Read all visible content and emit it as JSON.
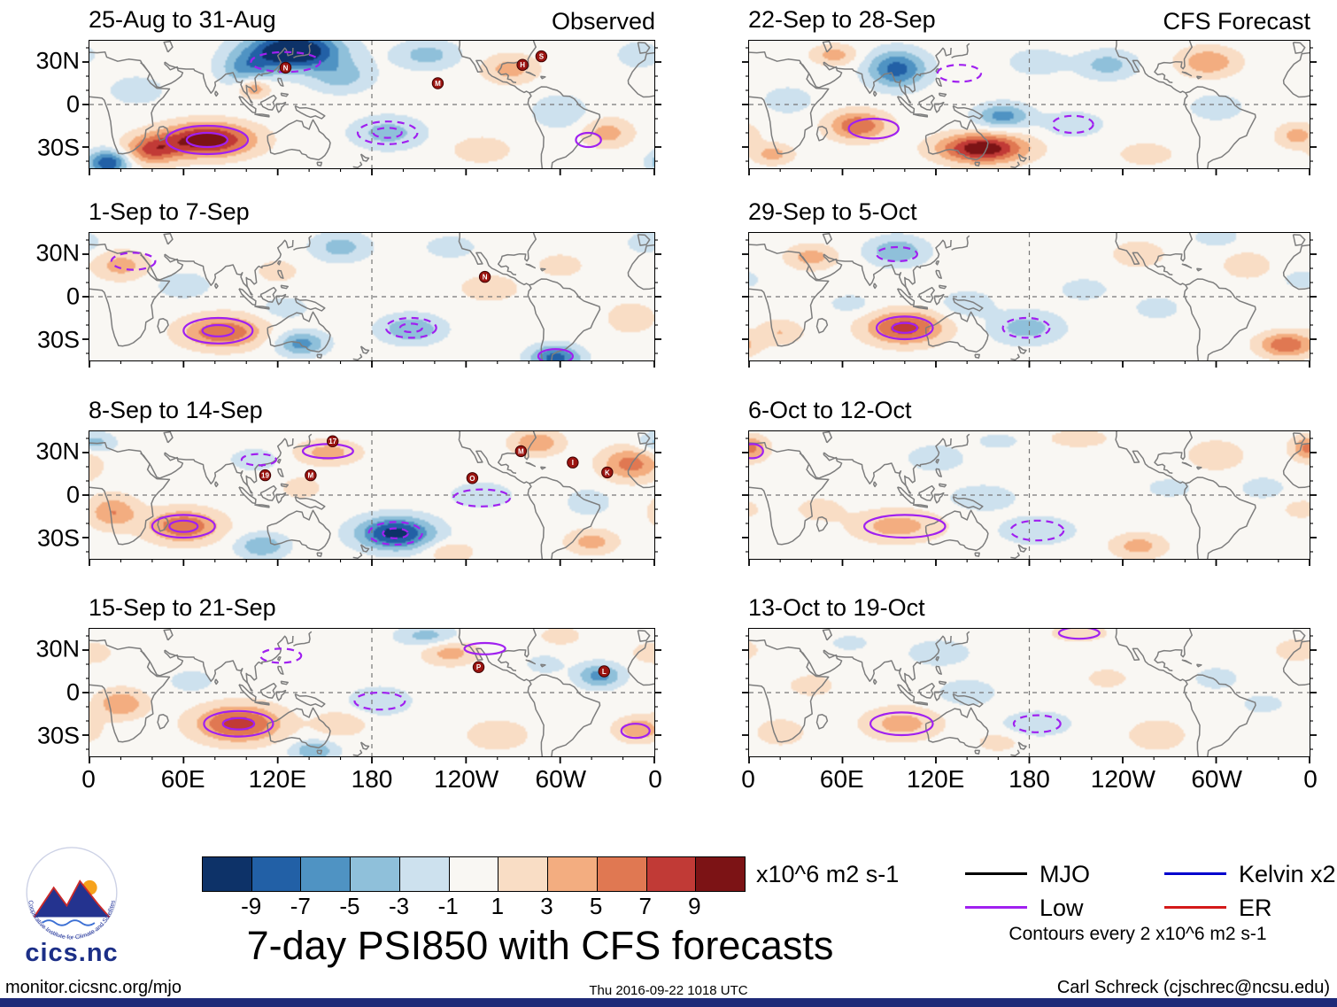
{
  "chart_data": {
    "type": "heatmap",
    "title": "7-day PSI850 with CFS forecasts",
    "columns": [
      "Observed",
      "CFS Forecast"
    ],
    "axes": {
      "lat_ticks": [
        "30N",
        "0",
        "30S"
      ],
      "lon_ticks": [
        "0",
        "60E",
        "120E",
        "180",
        "120W",
        "60W",
        "0"
      ],
      "lat_range": [
        -45,
        45
      ],
      "lon_range": [
        0,
        360
      ]
    },
    "colorbar": {
      "levels": [
        -9,
        -7,
        -5,
        -3,
        -1,
        1,
        3,
        5,
        7,
        9
      ],
      "colors": [
        "#0d3268",
        "#2260a6",
        "#4f93c3",
        "#8fc0da",
        "#cde1ee",
        "#f9f7f3",
        "#f9ddc5",
        "#f3ad80",
        "#e07852",
        "#c13a36",
        "#7c1315"
      ],
      "tick_labels": [
        "-9",
        "-7",
        "-5",
        "-3",
        "-1",
        "1",
        "3",
        "5",
        "7",
        "9"
      ],
      "units": "x10^6 m2 s-1"
    },
    "contour_note": "Contours every 2 x10^6 m2 s-1",
    "legend": [
      {
        "label": "MJO",
        "color": "#000000"
      },
      {
        "label": "Low",
        "color": "#a020f0"
      },
      {
        "label": "Kelvin x2",
        "color": "#0000cd"
      },
      {
        "label": "ER",
        "color": "#d41a1a"
      }
    ],
    "panels": [
      {
        "title": "25-Aug to 31-Aug",
        "column": "Observed",
        "centers": [
          [
            130,
            38,
            -13,
            20,
            9
          ],
          [
            100,
            25,
            -5,
            12,
            8
          ],
          [
            160,
            20,
            -4,
            14,
            8
          ],
          [
            105,
            12,
            5,
            7,
            5
          ],
          [
            75,
            -25,
            11,
            20,
            8
          ],
          [
            40,
            -32,
            7,
            12,
            7
          ],
          [
            12,
            -41,
            -9,
            9,
            6
          ],
          [
            190,
            -20,
            -4,
            16,
            8
          ],
          [
            215,
            35,
            -4,
            14,
            7
          ],
          [
            268,
            25,
            4,
            12,
            7
          ],
          [
            300,
            -5,
            -3,
            12,
            8
          ],
          [
            330,
            -20,
            4,
            11,
            7
          ],
          [
            250,
            -32,
            3,
            12,
            6
          ],
          [
            30,
            10,
            -2,
            14,
            8
          ],
          [
            350,
            35,
            -3,
            9,
            6
          ]
        ],
        "contours": [
          [
            75,
            -25,
            26,
            10,
            0
          ],
          [
            75,
            -25,
            13,
            5,
            0
          ],
          [
            190,
            -20,
            19,
            8,
            1
          ],
          [
            190,
            -20,
            9,
            3.5,
            1
          ],
          [
            125,
            30,
            22,
            7,
            1
          ],
          [
            318,
            -25,
            8,
            5,
            0
          ]
        ],
        "storms": [
          [
            "N",
            125,
            26
          ],
          [
            "M",
            222,
            15
          ],
          [
            "H",
            276,
            28
          ],
          [
            "S",
            288,
            34
          ]
        ]
      },
      {
        "title": "1-Sep to 7-Sep",
        "column": "Observed",
        "centers": [
          [
            20,
            22,
            4,
            12,
            7
          ],
          [
            60,
            8,
            -3,
            11,
            6
          ],
          [
            85,
            -25,
            7,
            18,
            8
          ],
          [
            135,
            -33,
            -6,
            11,
            6
          ],
          [
            125,
            -8,
            -3,
            9,
            5
          ],
          [
            160,
            35,
            -4,
            13,
            7
          ],
          [
            205,
            -23,
            -5,
            14,
            7
          ],
          [
            297,
            -43,
            -8,
            11,
            6
          ],
          [
            255,
            6,
            3,
            12,
            6
          ],
          [
            300,
            22,
            3,
            9,
            5
          ],
          [
            345,
            -15,
            3,
            10,
            7
          ],
          [
            230,
            35,
            -3,
            10,
            5
          ],
          [
            120,
            18,
            2,
            10,
            6
          ],
          [
            355,
            38,
            -3,
            8,
            5
          ]
        ],
        "contours": [
          [
            82,
            -24,
            22,
            9,
            0
          ],
          [
            82,
            -24,
            10,
            4,
            0
          ],
          [
            205,
            -22,
            16,
            7,
            1
          ],
          [
            205,
            -22,
            7,
            3,
            1
          ],
          [
            28,
            25,
            14,
            6,
            1
          ],
          [
            297,
            -42,
            11,
            5,
            0
          ]
        ],
        "storms": [
          [
            "N",
            252,
            14
          ]
        ]
      },
      {
        "title": "8-Sep to 14-Sep",
        "column": "Observed",
        "centers": [
          [
            15,
            -12,
            5,
            11,
            8
          ],
          [
            60,
            -22,
            7,
            16,
            8
          ],
          [
            110,
            -36,
            -5,
            11,
            6
          ],
          [
            195,
            -27,
            -10,
            17,
            8
          ],
          [
            152,
            30,
            4,
            14,
            6
          ],
          [
            250,
            0,
            -3,
            13,
            6
          ],
          [
            285,
            37,
            5,
            11,
            6
          ],
          [
            345,
            22,
            6,
            13,
            8
          ],
          [
            318,
            -5,
            -3,
            9,
            6
          ],
          [
            320,
            -33,
            4,
            11,
            6
          ],
          [
            3,
            37,
            -4,
            9,
            5
          ],
          [
            105,
            25,
            -3,
            10,
            5
          ],
          [
            230,
            -40,
            3,
            10,
            5
          ],
          [
            135,
            5,
            2,
            10,
            6
          ]
        ],
        "contours": [
          [
            60,
            -22,
            20,
            8,
            0
          ],
          [
            60,
            -22,
            9,
            4,
            0
          ],
          [
            195,
            -27,
            17,
            8,
            1
          ],
          [
            195,
            -27,
            8,
            3.5,
            1
          ],
          [
            152,
            31,
            16,
            5,
            0
          ],
          [
            108,
            25,
            11,
            4,
            1
          ],
          [
            250,
            -2,
            18,
            6,
            1
          ]
        ],
        "storms": [
          [
            "17",
            155,
            38
          ],
          [
            "19",
            112,
            14
          ],
          [
            "M",
            141,
            14
          ],
          [
            "O",
            244,
            12
          ],
          [
            "M",
            275,
            31
          ],
          [
            "I",
            308,
            23
          ],
          [
            "K",
            330,
            16
          ]
        ]
      },
      {
        "title": "15-Sep to 21-Sep",
        "column": "Observed",
        "centers": [
          [
            95,
            -22,
            8,
            19,
            9
          ],
          [
            20,
            -8,
            5,
            11,
            7
          ],
          [
            143,
            -41,
            -5,
            10,
            5
          ],
          [
            185,
            -6,
            -3,
            14,
            7
          ],
          [
            230,
            28,
            4,
            12,
            6
          ],
          [
            325,
            12,
            -6,
            10,
            6
          ],
          [
            260,
            -30,
            3,
            13,
            7
          ],
          [
            350,
            -26,
            5,
            10,
            6
          ],
          [
            215,
            40,
            -4,
            13,
            5
          ],
          [
            300,
            40,
            3,
            8,
            4
          ],
          [
            0,
            28,
            3,
            9,
            5
          ],
          [
            65,
            8,
            -2,
            11,
            6
          ],
          [
            160,
            -22,
            3,
            11,
            6
          ],
          [
            290,
            20,
            -2,
            9,
            5
          ]
        ],
        "contours": [
          [
            95,
            -22,
            22,
            9,
            0
          ],
          [
            95,
            -22,
            10,
            4,
            0
          ],
          [
            185,
            -6,
            16,
            6,
            1
          ],
          [
            122,
            26,
            13,
            5,
            1
          ],
          [
            348,
            -27,
            9,
            5,
            0
          ],
          [
            252,
            31,
            13,
            4,
            0
          ]
        ],
        "storms": [
          [
            "P",
            248,
            18
          ],
          [
            "L",
            328,
            15
          ]
        ]
      },
      {
        "title": "22-Sep to 28-Sep",
        "column": "CFS Forecast",
        "centers": [
          [
            95,
            25,
            -8,
            13,
            9
          ],
          [
            70,
            -15,
            7,
            13,
            7
          ],
          [
            150,
            -31,
            11,
            19,
            7
          ],
          [
            163,
            -8,
            -6,
            12,
            6
          ],
          [
            208,
            -14,
            -3,
            13,
            6
          ],
          [
            230,
            28,
            -4,
            13,
            7
          ],
          [
            295,
            30,
            5,
            13,
            7
          ],
          [
            300,
            -2,
            -3,
            11,
            6
          ],
          [
            352,
            -22,
            4,
            9,
            6
          ],
          [
            25,
            3,
            -3,
            10,
            6
          ],
          [
            15,
            -35,
            4,
            9,
            5
          ],
          [
            55,
            35,
            4,
            10,
            5
          ],
          [
            185,
            30,
            -3,
            12,
            6
          ],
          [
            255,
            -35,
            3,
            11,
            5
          ]
        ],
        "contours": [
          [
            80,
            -17,
            16,
            7,
            0
          ],
          [
            135,
            22,
            14,
            6,
            1
          ],
          [
            208,
            -14,
            13,
            6,
            1
          ]
        ],
        "storms": []
      },
      {
        "title": "29-Sep to 5-Oct",
        "column": "CFS Forecast",
        "centers": [
          [
            100,
            -22,
            8,
            17,
            8
          ],
          [
            95,
            32,
            -5,
            13,
            7
          ],
          [
            40,
            28,
            4,
            11,
            6
          ],
          [
            140,
            -5,
            -3,
            11,
            6
          ],
          [
            178,
            -22,
            -4,
            16,
            8
          ],
          [
            250,
            30,
            3,
            11,
            6
          ],
          [
            262,
            -8,
            -2,
            11,
            6
          ],
          [
            345,
            -34,
            7,
            12,
            6
          ],
          [
            320,
            22,
            3,
            10,
            6
          ],
          [
            355,
            12,
            -2,
            9,
            5
          ],
          [
            20,
            -25,
            3,
            10,
            6
          ],
          [
            215,
            5,
            -2,
            12,
            6
          ],
          [
            300,
            42,
            -3,
            9,
            4
          ],
          [
            65,
            -5,
            -2,
            10,
            5
          ]
        ],
        "contours": [
          [
            100,
            -22,
            18,
            8,
            0
          ],
          [
            100,
            -22,
            8,
            3.5,
            0
          ],
          [
            178,
            -22,
            15,
            7,
            1
          ],
          [
            95,
            30,
            13,
            5,
            1
          ]
        ],
        "storms": []
      },
      {
        "title": "6-Oct to 12-Oct",
        "column": "CFS Forecast",
        "centers": [
          [
            0,
            33,
            6,
            8,
            6
          ],
          [
            95,
            -22,
            4,
            20,
            8
          ],
          [
            185,
            -25,
            -3,
            17,
            7
          ],
          [
            150,
            -2,
            -3,
            14,
            6
          ],
          [
            120,
            26,
            -3,
            12,
            6
          ],
          [
            250,
            -36,
            4,
            12,
            6
          ],
          [
            300,
            28,
            3,
            12,
            7
          ],
          [
            330,
            5,
            -2,
            11,
            6
          ],
          [
            212,
            40,
            3,
            12,
            4
          ],
          [
            355,
            -10,
            2,
            9,
            5
          ],
          [
            45,
            -10,
            2,
            11,
            6
          ],
          [
            270,
            5,
            -2,
            11,
            5
          ],
          [
            160,
            38,
            -2,
            10,
            4
          ]
        ],
        "contours": [
          [
            100,
            -22,
            26,
            8,
            0
          ],
          [
            185,
            -25,
            17,
            7,
            1
          ],
          [
            2,
            31,
            7,
            5,
            0
          ]
        ],
        "storms": []
      },
      {
        "title": "13-Oct to 19-Oct",
        "column": "CFS Forecast",
        "centers": [
          [
            98,
            -22,
            4,
            17,
            8
          ],
          [
            185,
            -22,
            -3,
            15,
            6
          ],
          [
            140,
            0,
            -3,
            12,
            6
          ],
          [
            122,
            28,
            -3,
            13,
            6
          ],
          [
            40,
            5,
            2,
            11,
            6
          ],
          [
            262,
            -30,
            3,
            12,
            7
          ],
          [
            300,
            10,
            -2,
            11,
            6
          ],
          [
            352,
            30,
            3,
            9,
            5
          ],
          [
            212,
            42,
            3,
            12,
            4
          ],
          [
            20,
            -28,
            3,
            10,
            6
          ],
          [
            230,
            10,
            2,
            10,
            5
          ],
          [
            330,
            -8,
            -2,
            10,
            5
          ],
          [
            65,
            35,
            -2,
            9,
            4
          ],
          [
            160,
            -35,
            2,
            10,
            5
          ]
        ],
        "contours": [
          [
            98,
            -22,
            20,
            8,
            0
          ],
          [
            185,
            -22,
            15,
            6,
            1
          ],
          [
            212,
            42,
            13,
            4,
            0
          ]
        ],
        "storms": []
      }
    ]
  },
  "logo": {
    "name": "cics.nc",
    "arc_text": "Cooperative Institute for Climate and Satellites"
  },
  "footer": {
    "left": "monitor.cicsnc.org/mjo",
    "center": "Thu 2016-09-22 1018 UTC",
    "right": "Carl Schreck (cjschrec@ncsu.edu)"
  }
}
